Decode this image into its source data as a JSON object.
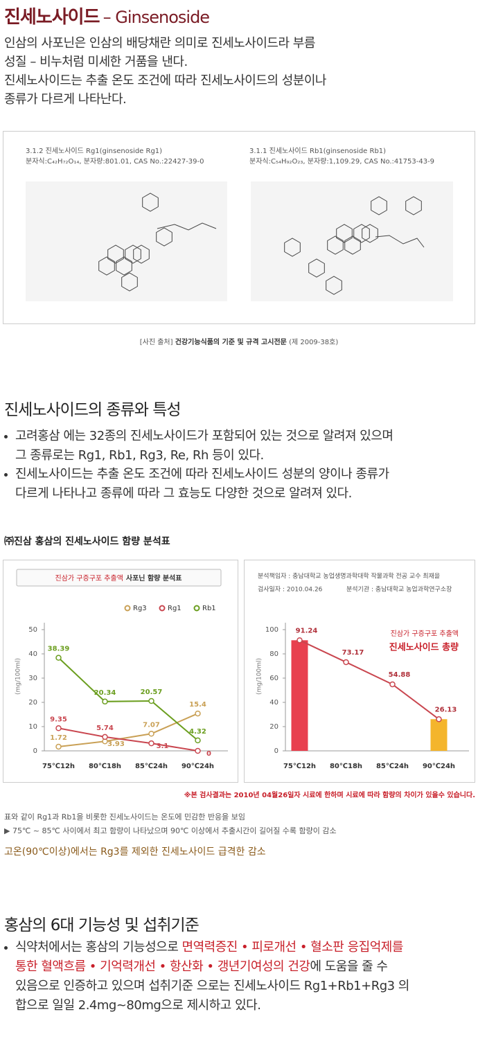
{
  "header": {
    "title": "진세노사이드",
    "title_sub": "– Ginsenoside"
  },
  "intro": [
    "인삼의 사포닌은 인삼의 배당채란 의미로 진세노사이드라 부름",
    "성질 – 비누처럼 미세한 거품을 낸다.",
    "진세노사이드는 추출 온도 조건에 따라 진세노사이드의 성분이나",
    "종류가 다르게 나타난다."
  ],
  "figure": {
    "panels": [
      {
        "caption": "3.1.2 진세노사이드 Rg1(ginsenoside Rg1)",
        "formula": "분자식:C₄₂H₇₂O₁₄, 분자량:801.01, CAS No.:22427-39-0"
      },
      {
        "caption": "3.1.1 진세노사이드 Rb1(ginsenoside Rb1)",
        "formula": "분자식:C₅₄H₉₂O₂₃, 분자량:1,109.29, CAS No.:41753-43-9"
      }
    ],
    "source": {
      "label": "[사진 출처]",
      "title": "건강기능식품의 기준 및 규격 고시전문",
      "note": "(제 2009-38호)"
    }
  },
  "section2": {
    "heading": "진세노사이드의 종류와 특성",
    "bullets": [
      [
        "고려홍삼 에는 32종의 진세노사이드가 포함되어 있는 것으로 알려져 있으며",
        "그 종류로는 Rg1, Rb1, Rg3, Re, Rh 등이 있다."
      ],
      [
        "진세노사이드는 추출 온도 조건에 따라 진세노사이드 성분의 양이나 종류가",
        "다르게 나타나고 종류에 따라 그 효능도 다양한 것으로 알려져 있다."
      ]
    ]
  },
  "section3": {
    "heading": "㈜진삼 홍삼의 진세노사이드 함량 분석표",
    "footnote": "※본 검사결과는 2010년 04월26일자 시료에 한하며 시료에 따라 함량의 차이가 있을수 있습니다.",
    "notes": [
      "표와 같이 Rg1과 Rb1을 비롯한 진세노사이드는 온도에 민감한 반응을 보임",
      "▶ 75℃ ~ 85℃ 사이에서 최고 함량이 나타났으며 90℃ 이상에서 추출시간이 길어질 수록 함량이 감소"
    ],
    "conclusion": "고온(90℃이상)에서는  Rg3를 제외한 진세노사이드 급격한 감소"
  },
  "chart_data": [
    {
      "type": "line",
      "title": "진삼가 구증구포 추출액",
      "title_bold": "사포닌 함량 분석표",
      "ylabel": "(mg/100ml)",
      "categories": [
        "75℃12h",
        "80℃18h",
        "85℃24h",
        "90℃24h"
      ],
      "series": [
        {
          "name": "Rg3",
          "color": "#c9a055",
          "values": [
            1.72,
            3.93,
            7.07,
            15.4
          ]
        },
        {
          "name": "Rg1",
          "color": "#c9464f",
          "values": [
            9.35,
            5.74,
            3.1,
            0
          ]
        },
        {
          "name": "Rb1",
          "color": "#6b9e1f",
          "values": [
            38.39,
            20.34,
            20.57,
            4.32
          ]
        }
      ],
      "ylim": [
        0,
        50
      ],
      "yticks": [
        0,
        10,
        20,
        30,
        40,
        50
      ],
      "data_labels": true
    },
    {
      "type": "line",
      "responsible": "분석책임자 : 충남대학교 농업생명과학대학 작물과학 전공 교수 최재을",
      "date": "검사일자 : 2010.04.26",
      "institution": "분석기관 : 충남대학교 농업과학연구소장",
      "annotation": [
        "진삼가 구증구포 추출액",
        "진세노사이드 총량"
      ],
      "ylabel": "(mg/100ml)",
      "categories": [
        "75℃12h",
        "80℃18h",
        "85℃24h",
        "90℃24h"
      ],
      "values": [
        91.24,
        73.17,
        54.88,
        26.13
      ],
      "color": "#c9464f",
      "bar_colors": [
        "#e8404f",
        null,
        null,
        "#f4b52c"
      ],
      "ylim": [
        0,
        100
      ],
      "yticks": [
        0,
        20,
        40,
        60,
        80,
        100
      ],
      "data_labels": true
    }
  ],
  "section4": {
    "heading": "홍삼의 6대 기능성 및 섭취기준",
    "lines": [
      [
        {
          "text": "식약처에서는 홍삼의 기능성으로 ",
          "emphasis": false
        },
        {
          "text": "면역력증진 • 피로개선 • 혈소판 응집억제를",
          "emphasis": true
        }
      ],
      [
        {
          "text": "통한 혈액흐름 • 기억력개선 • 항산화 • 갱년기여성의 건강",
          "emphasis": true
        },
        {
          "text": "에 도움을 줄 수",
          "emphasis": false
        }
      ],
      [
        {
          "text": "있음으로 인증하고 있으며 섭취기준 으로는 진세노사이드 Rg1+Rb1+Rg3 의",
          "emphasis": false
        }
      ],
      [
        {
          "text": "합으로 일일 2.4mg~80mg으로 제시하고 있다.",
          "emphasis": false
        }
      ]
    ]
  }
}
